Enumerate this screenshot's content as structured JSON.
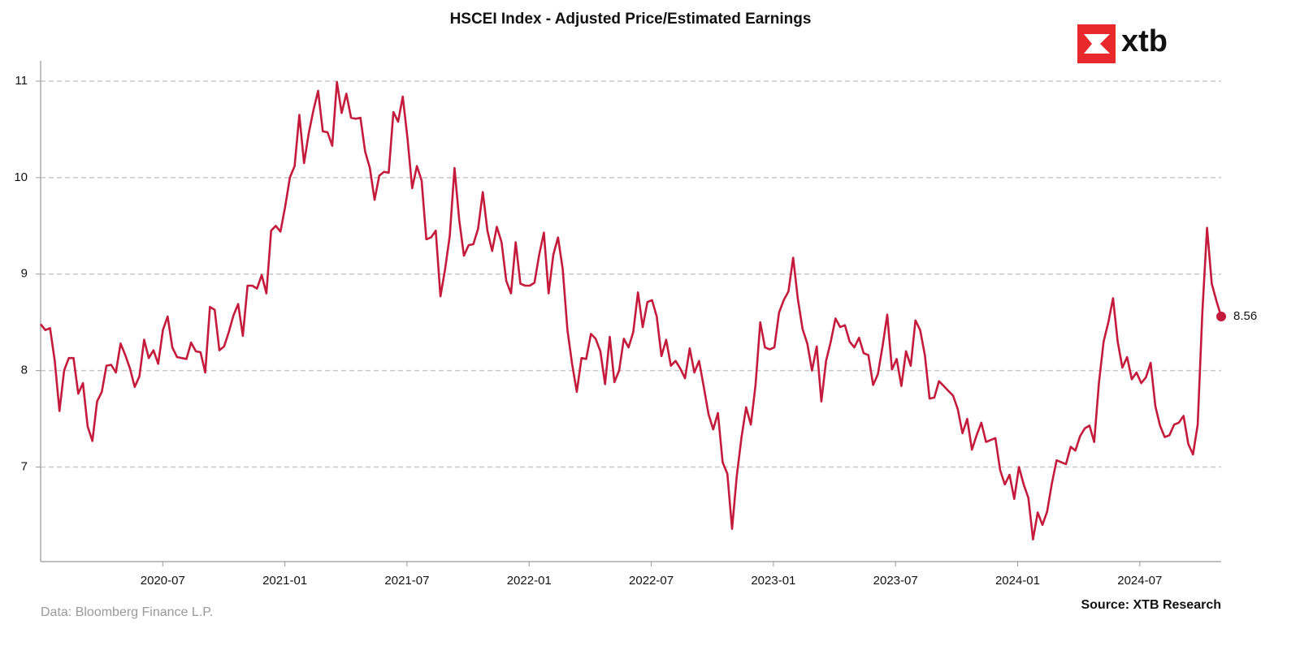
{
  "chart_data": {
    "type": "line",
    "title": "HSCEI Index - Adjusted Price/Estimated Earnings",
    "logo": "xtb",
    "note": "Data: Bloomberg Finance L.P.",
    "source": "Source: XTB Research",
    "color": "#c41a3b",
    "grid": true,
    "xlim": [
      "2020-01",
      "2024-11"
    ],
    "xticks": [
      "2020-07",
      "2021-01",
      "2021-07",
      "2022-01",
      "2022-07",
      "2023-01",
      "2023-07",
      "2024-01",
      "2024-07"
    ],
    "ylim": [
      6.02,
      11.21
    ],
    "yticks": [
      7,
      8,
      9,
      10,
      11
    ],
    "values": [
      8.48,
      8.42,
      8.44,
      8.1,
      7.58,
      8.0,
      8.13,
      8.13,
      7.76,
      7.87,
      7.42,
      7.27,
      7.68,
      7.78,
      8.05,
      8.06,
      7.98,
      8.28,
      8.16,
      8.02,
      7.83,
      7.94,
      8.32,
      8.13,
      8.21,
      8.07,
      8.42,
      8.56,
      8.24,
      8.14,
      8.13,
      8.12,
      8.29,
      8.2,
      8.19,
      7.98,
      8.66,
      8.63,
      8.21,
      8.25,
      8.4,
      8.57,
      8.69,
      8.36,
      8.88,
      8.88,
      8.85,
      8.99,
      8.8,
      9.45,
      9.5,
      9.44,
      9.7,
      10.0,
      10.12,
      10.65,
      10.15,
      10.46,
      10.7,
      10.9,
      10.48,
      10.47,
      10.33,
      10.99,
      10.67,
      10.87,
      10.62,
      10.61,
      10.62,
      10.27,
      10.1,
      9.77,
      10.02,
      10.06,
      10.05,
      10.68,
      10.58,
      10.84,
      10.41,
      9.89,
      10.12,
      9.97,
      9.36,
      9.38,
      9.45,
      8.77,
      9.05,
      9.4,
      10.1,
      9.56,
      9.19,
      9.3,
      9.31,
      9.47,
      9.85,
      9.45,
      9.24,
      9.49,
      9.33,
      8.93,
      8.8,
      9.33,
      8.9,
      8.88,
      8.88,
      8.91,
      9.2,
      9.43,
      8.8,
      9.2,
      9.38,
      9.05,
      8.42,
      8.07,
      7.78,
      8.13,
      8.12,
      8.38,
      8.33,
      8.2,
      7.86,
      8.35,
      7.88,
      8.0,
      8.33,
      8.24,
      8.4,
      8.81,
      8.45,
      8.71,
      8.73,
      8.56,
      8.15,
      8.32,
      8.05,
      8.1,
      8.02,
      7.92,
      8.23,
      7.98,
      8.1,
      7.83,
      7.55,
      7.39,
      7.56,
      7.05,
      6.93,
      6.36,
      6.9,
      7.3,
      7.62,
      7.44,
      7.85,
      8.5,
      8.24,
      8.22,
      8.24,
      8.6,
      8.73,
      8.82,
      9.17,
      8.74,
      8.43,
      8.28,
      8.0,
      8.25,
      7.68,
      8.1,
      8.3,
      8.54,
      8.45,
      8.47,
      8.3,
      8.24,
      8.34,
      8.18,
      8.16,
      7.85,
      7.96,
      8.25,
      8.58,
      8.01,
      8.12,
      7.84,
      8.2,
      8.05,
      8.52,
      8.42,
      8.16,
      7.71,
      7.72,
      7.89,
      7.84,
      7.79,
      7.74,
      7.6,
      7.35,
      7.5,
      7.18,
      7.33,
      7.46,
      7.26,
      7.28,
      7.3,
      6.97,
      6.82,
      6.92,
      6.67,
      7.0,
      6.82,
      6.68,
      6.25,
      6.53,
      6.4,
      6.54,
      6.83,
      7.07,
      7.05,
      7.03,
      7.21,
      7.17,
      7.32,
      7.4,
      7.43,
      7.26,
      7.87,
      8.3,
      8.5,
      8.75,
      8.3,
      8.03,
      8.14,
      7.91,
      7.98,
      7.87,
      7.93,
      8.08,
      7.63,
      7.43,
      7.31,
      7.33,
      7.44,
      7.46,
      7.53,
      7.24,
      7.13,
      7.44,
      8.6,
      9.48,
      8.9,
      8.72,
      8.56
    ]
  }
}
